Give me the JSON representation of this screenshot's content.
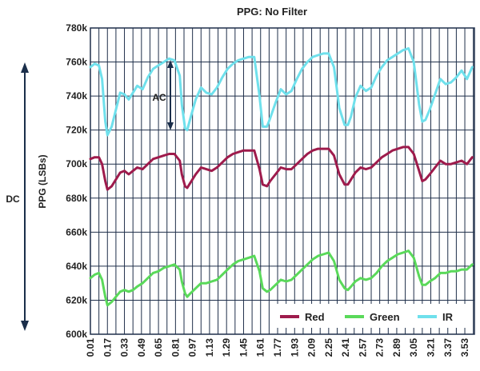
{
  "chart_data": {
    "type": "line",
    "title": "PPG: No Filter",
    "ylabel": "PPG (LSBs)",
    "ylim": [
      600000,
      780000
    ],
    "y_ticks": [
      "600k",
      "620k",
      "640k",
      "660k",
      "680k",
      "700k",
      "720k",
      "740k",
      "760k",
      "780k"
    ],
    "x_ticks": [
      "0.01",
      "0.17",
      "0.33",
      "0.49",
      "0.65",
      "0.81",
      "0.97",
      "1.13",
      "1.29",
      "1.45",
      "1.61",
      "1.77",
      "1.93",
      "2.09",
      "2.25",
      "2.41",
      "2.57",
      "2.73",
      "2.89",
      "3.05",
      "3.21",
      "3.37",
      "3.53"
    ],
    "xlim": [
      0.01,
      3.62
    ],
    "grid": true,
    "legend_position": "bottom-right",
    "annotations": {
      "dc_label": "DC",
      "ac_label": "AC"
    },
    "colors": {
      "Red": "#9e1b4c",
      "Green": "#5ad95a",
      "IR": "#6fe0ec"
    },
    "series": [
      {
        "name": "IR",
        "x": [
          0.01,
          0.05,
          0.09,
          0.12,
          0.15,
          0.17,
          0.21,
          0.25,
          0.29,
          0.33,
          0.37,
          0.41,
          0.45,
          0.5,
          0.55,
          0.6,
          0.65,
          0.7,
          0.75,
          0.8,
          0.85,
          0.87,
          0.9,
          0.92,
          0.95,
          1.0,
          1.05,
          1.1,
          1.15,
          1.2,
          1.25,
          1.3,
          1.35,
          1.4,
          1.45,
          1.5,
          1.55,
          1.6,
          1.63,
          1.67,
          1.7,
          1.75,
          1.8,
          1.85,
          1.9,
          1.95,
          2.0,
          2.05,
          2.1,
          2.15,
          2.2,
          2.25,
          2.3,
          2.35,
          2.4,
          2.43,
          2.46,
          2.5,
          2.55,
          2.6,
          2.65,
          2.7,
          2.75,
          2.8,
          2.85,
          2.9,
          2.95,
          3.0,
          3.05,
          3.1,
          3.13,
          3.16,
          3.2,
          3.25,
          3.3,
          3.35,
          3.4,
          3.45,
          3.5,
          3.55,
          3.6
        ],
        "y": [
          757000,
          759000,
          758000,
          750000,
          725000,
          717000,
          722000,
          732000,
          742000,
          741000,
          738000,
          742000,
          746000,
          744000,
          751000,
          756000,
          758000,
          760000,
          762000,
          761000,
          752000,
          735000,
          721000,
          720000,
          727000,
          738000,
          745000,
          742000,
          741000,
          745000,
          751000,
          756000,
          759000,
          761000,
          762000,
          763000,
          763000,
          740000,
          722000,
          722000,
          727000,
          736000,
          744000,
          741000,
          743000,
          750000,
          756000,
          760000,
          763000,
          764000,
          765000,
          765000,
          757000,
          733000,
          723000,
          723000,
          728000,
          739000,
          746000,
          743000,
          745000,
          752000,
          757000,
          761000,
          763000,
          765000,
          767000,
          768000,
          760000,
          735000,
          725000,
          726000,
          732000,
          741000,
          750000,
          747000,
          748000,
          751000,
          755000,
          750000,
          757000
        ]
      },
      {
        "name": "Red",
        "x": [
          0.01,
          0.05,
          0.09,
          0.12,
          0.15,
          0.17,
          0.21,
          0.25,
          0.29,
          0.33,
          0.37,
          0.41,
          0.45,
          0.5,
          0.55,
          0.6,
          0.65,
          0.7,
          0.75,
          0.8,
          0.85,
          0.87,
          0.9,
          0.92,
          0.95,
          1.0,
          1.05,
          1.1,
          1.15,
          1.2,
          1.25,
          1.3,
          1.35,
          1.4,
          1.45,
          1.5,
          1.55,
          1.6,
          1.63,
          1.67,
          1.7,
          1.75,
          1.8,
          1.85,
          1.9,
          1.95,
          2.0,
          2.05,
          2.1,
          2.15,
          2.2,
          2.25,
          2.3,
          2.35,
          2.4,
          2.43,
          2.46,
          2.5,
          2.55,
          2.6,
          2.65,
          2.7,
          2.75,
          2.8,
          2.85,
          2.9,
          2.95,
          3.0,
          3.05,
          3.1,
          3.13,
          3.16,
          3.2,
          3.25,
          3.3,
          3.35,
          3.4,
          3.45,
          3.5,
          3.55,
          3.6
        ],
        "y": [
          703000,
          704000,
          704000,
          700000,
          690000,
          685000,
          687000,
          691000,
          695000,
          696000,
          694000,
          696000,
          698000,
          697000,
          700000,
          703000,
          704000,
          705000,
          706000,
          706000,
          702000,
          694000,
          687000,
          686000,
          689000,
          694000,
          698000,
          697000,
          696000,
          698000,
          701000,
          704000,
          706000,
          707000,
          708000,
          708000,
          708000,
          697000,
          688000,
          687000,
          690000,
          694000,
          698000,
          697000,
          697000,
          700000,
          703000,
          706000,
          708000,
          709000,
          709000,
          709000,
          705000,
          694000,
          688000,
          688000,
          691000,
          695000,
          698000,
          697000,
          698000,
          701000,
          704000,
          706000,
          708000,
          709000,
          710000,
          710000,
          706000,
          696000,
          690000,
          691000,
          694000,
          698000,
          702000,
          700000,
          700000,
          701000,
          702000,
          700000,
          704000
        ]
      },
      {
        "name": "Green",
        "x": [
          0.01,
          0.05,
          0.09,
          0.12,
          0.15,
          0.17,
          0.21,
          0.25,
          0.29,
          0.33,
          0.37,
          0.41,
          0.45,
          0.5,
          0.55,
          0.6,
          0.65,
          0.7,
          0.75,
          0.8,
          0.85,
          0.87,
          0.9,
          0.92,
          0.95,
          1.0,
          1.05,
          1.1,
          1.15,
          1.2,
          1.25,
          1.3,
          1.35,
          1.4,
          1.45,
          1.5,
          1.55,
          1.6,
          1.63,
          1.67,
          1.7,
          1.75,
          1.8,
          1.85,
          1.9,
          1.95,
          2.0,
          2.05,
          2.1,
          2.15,
          2.2,
          2.25,
          2.3,
          2.35,
          2.4,
          2.43,
          2.46,
          2.5,
          2.55,
          2.6,
          2.65,
          2.7,
          2.75,
          2.8,
          2.85,
          2.9,
          2.95,
          3.0,
          3.05,
          3.1,
          3.13,
          3.16,
          3.2,
          3.25,
          3.3,
          3.35,
          3.4,
          3.45,
          3.5,
          3.55,
          3.6
        ],
        "y": [
          633000,
          635000,
          636000,
          632000,
          622000,
          617000,
          619000,
          622000,
          625000,
          626000,
          625000,
          626000,
          628000,
          630000,
          633000,
          636000,
          637000,
          639000,
          640000,
          641000,
          638000,
          631000,
          624000,
          622000,
          624000,
          627000,
          630000,
          630000,
          631000,
          632000,
          635000,
          638000,
          641000,
          643000,
          644000,
          645000,
          646000,
          637000,
          627000,
          625000,
          626000,
          629000,
          632000,
          631000,
          632000,
          635000,
          638000,
          641000,
          644000,
          646000,
          647000,
          648000,
          643000,
          632000,
          627000,
          626000,
          628000,
          631000,
          633000,
          632000,
          633000,
          636000,
          640000,
          643000,
          645000,
          647000,
          648000,
          649000,
          645000,
          634000,
          629000,
          629000,
          631000,
          633000,
          636000,
          636000,
          637000,
          637000,
          638000,
          638000,
          641000
        ]
      }
    ]
  }
}
